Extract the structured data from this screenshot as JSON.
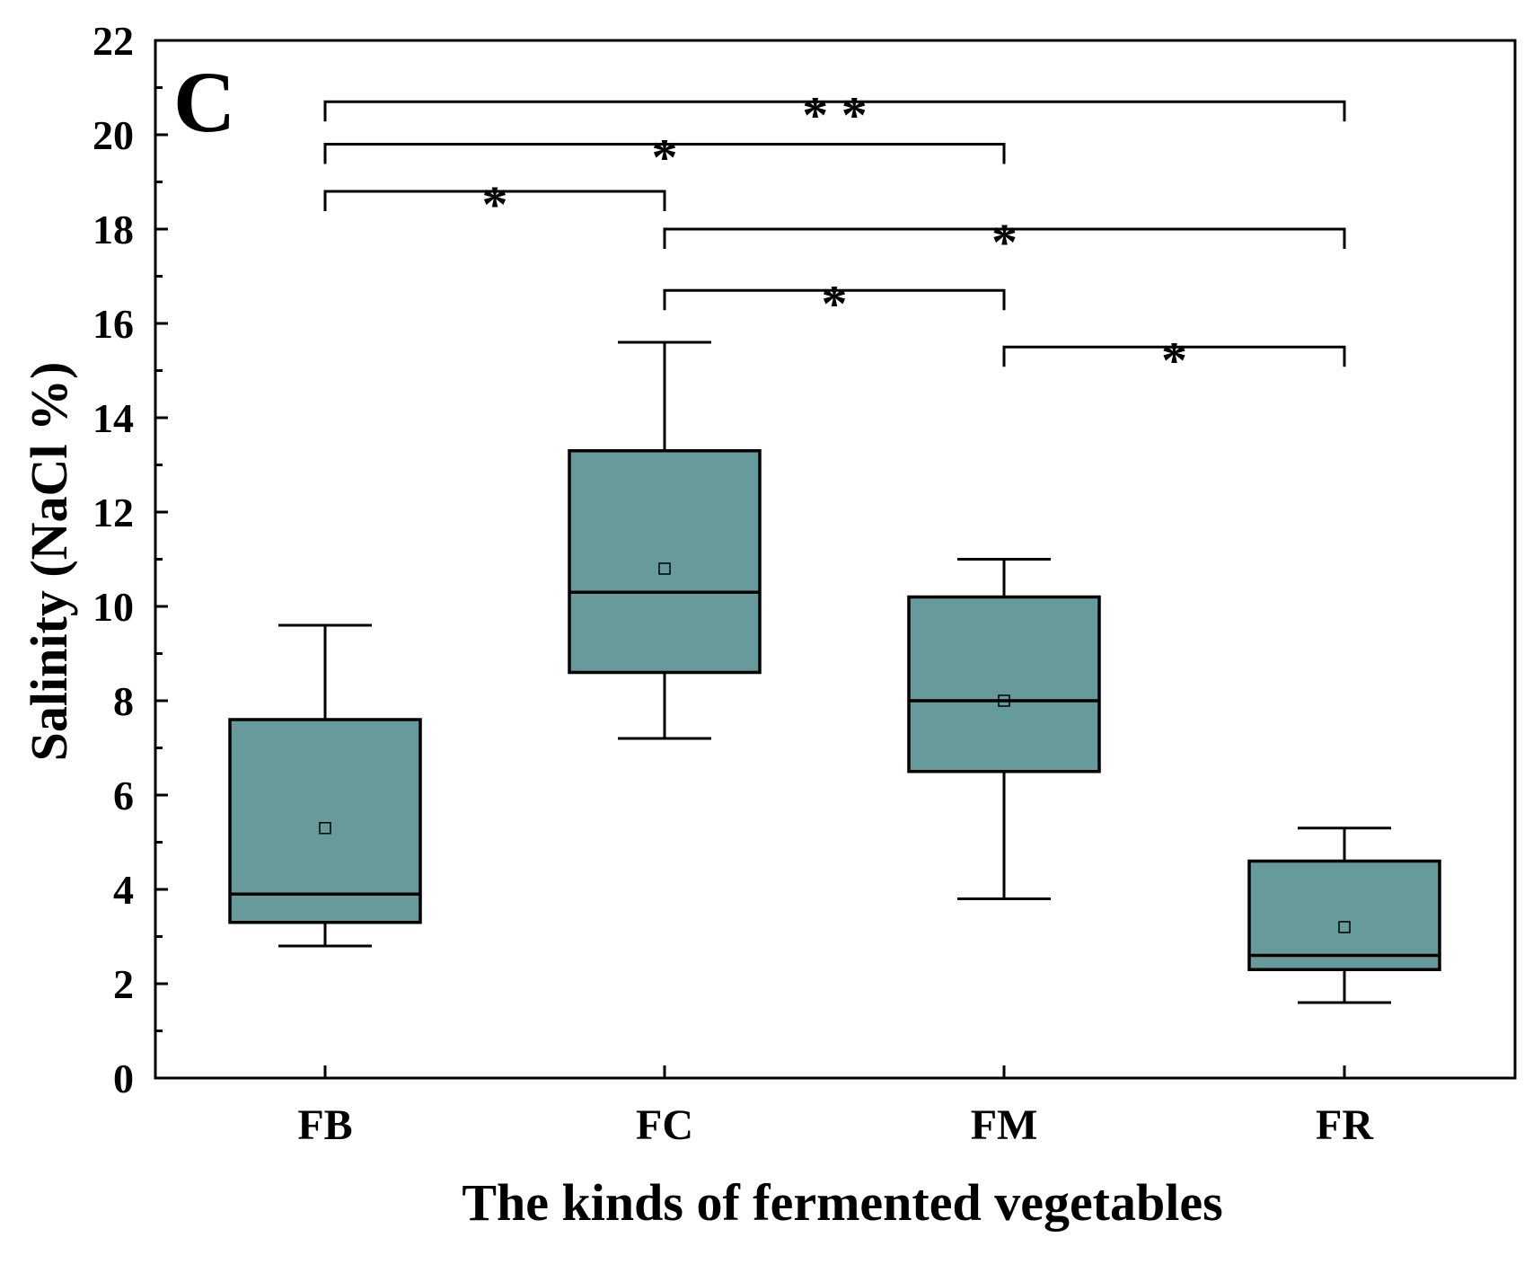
{
  "chart_data": {
    "type": "box",
    "panel_label": "C",
    "title": "",
    "xlabel": "The kinds of fermented vegetables",
    "ylabel": "Salinity (NaCl %)",
    "ylim": [
      0,
      22
    ],
    "yticks": [
      0,
      2,
      4,
      6,
      8,
      10,
      12,
      14,
      16,
      18,
      20,
      22
    ],
    "categories": [
      "FB",
      "FC",
      "FM",
      "FR"
    ],
    "box_color": "#679a9a",
    "series": [
      {
        "category": "FB",
        "whisker_low": 2.8,
        "q1": 3.3,
        "median": 3.9,
        "q3": 7.6,
        "whisker_high": 9.6,
        "mean": 5.3
      },
      {
        "category": "FC",
        "whisker_low": 7.2,
        "q1": 8.6,
        "median": 10.3,
        "q3": 13.3,
        "whisker_high": 15.6,
        "mean": 10.8
      },
      {
        "category": "FM",
        "whisker_low": 3.8,
        "q1": 6.5,
        "median": 8.0,
        "q3": 10.2,
        "whisker_high": 11.0,
        "mean": 8.0
      },
      {
        "category": "FR",
        "whisker_low": 1.6,
        "q1": 2.3,
        "median": 2.6,
        "q3": 4.6,
        "whisker_high": 5.3,
        "mean": 3.2
      }
    ],
    "significance": [
      {
        "from": "FB",
        "to": "FR",
        "y": 20.7,
        "label": "* *"
      },
      {
        "from": "FB",
        "to": "FM",
        "y": 19.8,
        "label": "*"
      },
      {
        "from": "FB",
        "to": "FC",
        "y": 18.8,
        "label": "*"
      },
      {
        "from": "FC",
        "to": "FR",
        "y": 18.0,
        "label": "*"
      },
      {
        "from": "FC",
        "to": "FM",
        "y": 16.7,
        "label": "*"
      },
      {
        "from": "FM",
        "to": "FR",
        "y": 15.5,
        "label": "*"
      }
    ],
    "grid": false,
    "legend": "none"
  }
}
